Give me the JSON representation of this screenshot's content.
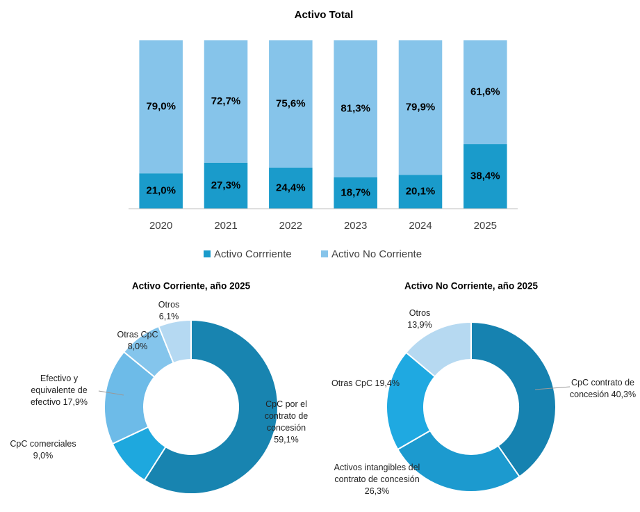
{
  "chart_data": [
    {
      "type": "bar",
      "stacked": true,
      "title": "Activo Total",
      "categories": [
        "2020",
        "2021",
        "2022",
        "2023",
        "2024",
        "2025"
      ],
      "series": [
        {
          "name": "Activo Corrriente",
          "color": "#1a9bcb",
          "values": [
            21.0,
            27.3,
            24.4,
            18.7,
            20.1,
            38.4
          ],
          "value_labels": [
            "21,0%",
            "27,3%",
            "24,4%",
            "18,7%",
            "20,1%",
            "38,4%"
          ]
        },
        {
          "name": "Activo No Corriente",
          "color": "#86c4ea",
          "values": [
            79.0,
            72.7,
            75.6,
            81.3,
            79.9,
            61.6
          ],
          "value_labels": [
            "79,0%",
            "72,7%",
            "75,6%",
            "81,3%",
            "79,9%",
            "61,6%"
          ]
        }
      ],
      "ylim": [
        0,
        100
      ],
      "legend": "bottom"
    },
    {
      "type": "donut",
      "title": "Activo Corriente, año 2025",
      "categories": [
        "CpC por el contrato de concesión",
        "CpC comerciales",
        "Efectivo y equivalente de efectivo",
        "Otras CpC",
        "Otros"
      ],
      "values": [
        59.1,
        9.0,
        17.9,
        8.0,
        6.1
      ],
      "value_labels": [
        "59,1%",
        "9,0%",
        "17,9%",
        "8,0%",
        "6,1%"
      ],
      "colors": [
        "#1884b0",
        "#1ea8de",
        "#6dbbe8",
        "#84c5ec",
        "#b5d9f2"
      ]
    },
    {
      "type": "donut",
      "title": "Activo No Corriente, año 2025",
      "categories": [
        "CpC contrato de concesión",
        "Activos intangibles del contrato de concesión",
        "Otras CpC",
        "Otros"
      ],
      "values": [
        40.3,
        26.3,
        19.4,
        13.9
      ],
      "value_labels": [
        "40,3%",
        "26,3%",
        "19,4%",
        "13,9%"
      ],
      "colors": [
        "#1682b0",
        "#1c9acf",
        "#1fa9e1",
        "#b6d9f1"
      ]
    }
  ]
}
